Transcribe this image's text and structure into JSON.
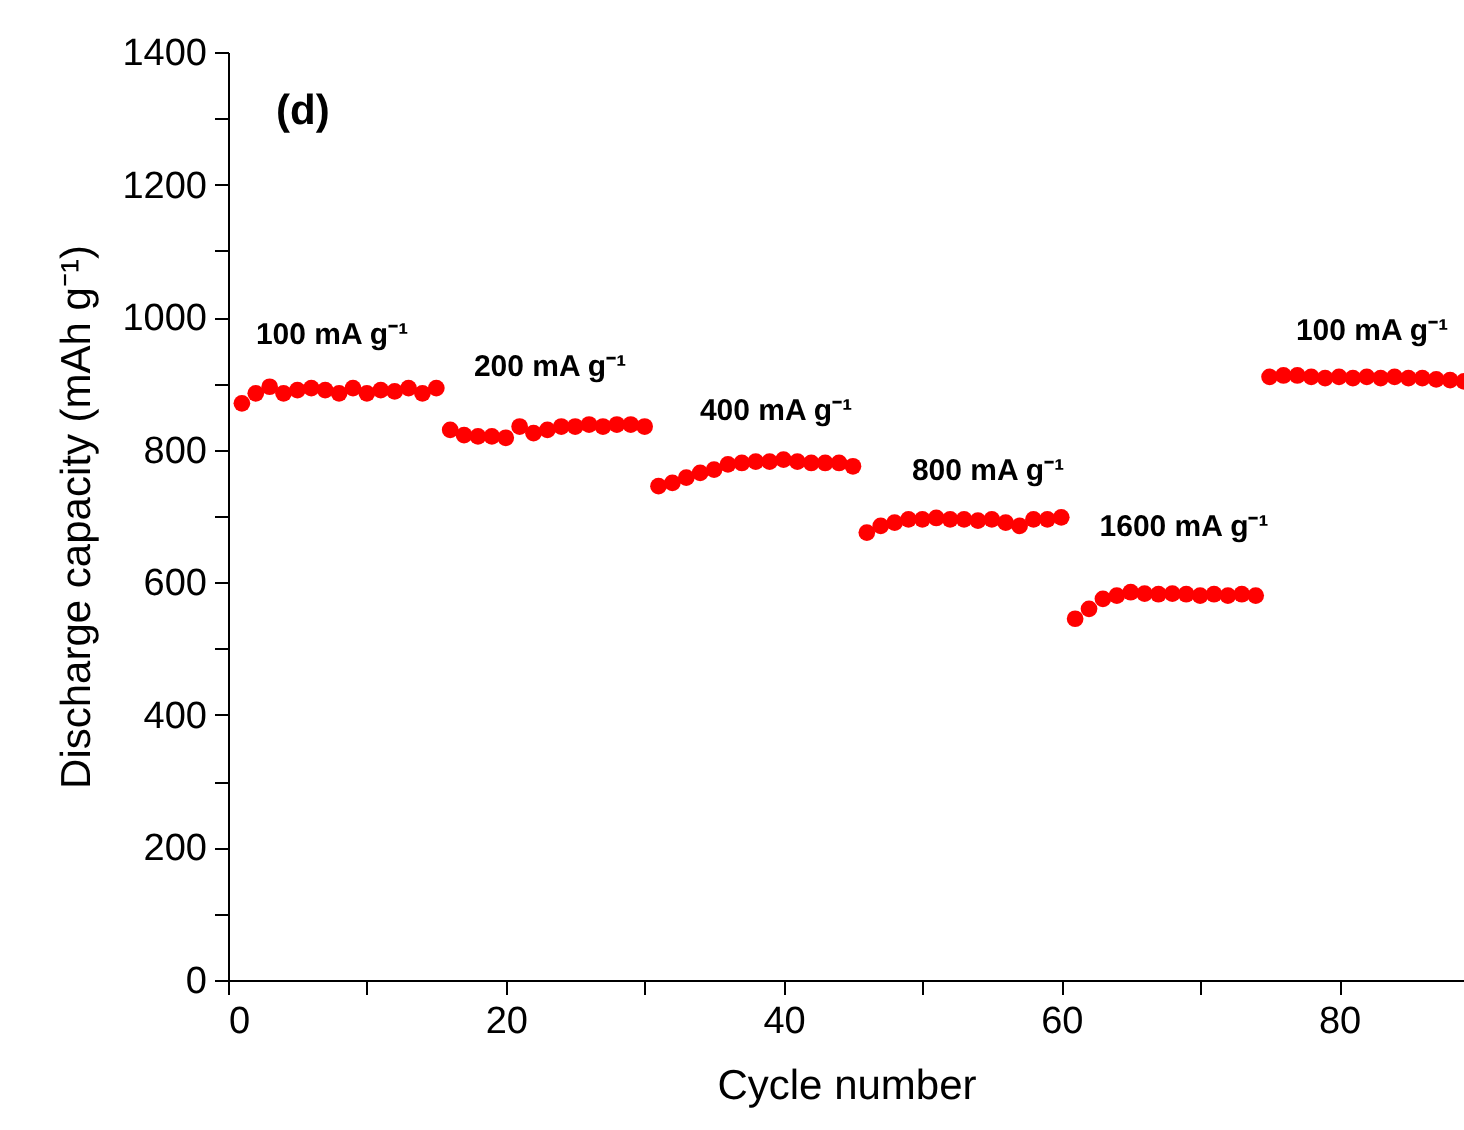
{
  "chart_data": {
    "type": "scatter",
    "xlabel": "Cycle number",
    "ylabel": "Discharge capacity (mAh g⁻¹)",
    "marker": "circle",
    "grid": false,
    "x": [
      1,
      2,
      3,
      4,
      5,
      6,
      7,
      8,
      9,
      10,
      11,
      12,
      13,
      14,
      15,
      16,
      17,
      18,
      19,
      20,
      21,
      22,
      23,
      24,
      25,
      26,
      27,
      28,
      29,
      30,
      31,
      32,
      33,
      34,
      35,
      36,
      37,
      38,
      39,
      40,
      41,
      42,
      43,
      44,
      45,
      46,
      47,
      48,
      49,
      50,
      51,
      52,
      53,
      54,
      55,
      56,
      57,
      58,
      59,
      60,
      61,
      62,
      63,
      64,
      65,
      66,
      67,
      68,
      69,
      70,
      71,
      72,
      73,
      74,
      75,
      76,
      77,
      78,
      79,
      80,
      81,
      82,
      83,
      84,
      85,
      86,
      87,
      88,
      89
    ],
    "series": [
      {
        "color": "#ff0000",
        "values": [
          870,
          885,
          895,
          885,
          890,
          893,
          890,
          885,
          893,
          885,
          890,
          888,
          893,
          885,
          893,
          830,
          822,
          820,
          820,
          818,
          835,
          825,
          830,
          835,
          835,
          838,
          835,
          838,
          838,
          835,
          745,
          750,
          758,
          765,
          770,
          778,
          780,
          782,
          782,
          785,
          782,
          780,
          780,
          780,
          775,
          675,
          685,
          690,
          695,
          695,
          697,
          695,
          695,
          693,
          695,
          690,
          685,
          695,
          695,
          698,
          545,
          560,
          575,
          580,
          585,
          583,
          582,
          583,
          582,
          580,
          582,
          580,
          582,
          580,
          910,
          912,
          912,
          910,
          908,
          910,
          908,
          910,
          908,
          910,
          908,
          908,
          906,
          905,
          903
        ]
      }
    ],
    "xlim": [
      0,
      89
    ],
    "ylim": [
      0,
      1400
    ],
    "xticks": [
      0,
      {
        "value": 10,
        "label": null
      },
      20,
      {
        "value": 30,
        "label": null
      },
      40,
      {
        "value": 50,
        "label": null
      },
      60,
      {
        "value": 70,
        "label": null
      },
      80
    ],
    "yticks": [
      0,
      {
        "value": 100,
        "label": null
      },
      200,
      {
        "value": 300,
        "label": null
      },
      400,
      {
        "value": 500,
        "label": null
      },
      600,
      {
        "value": 700,
        "label": null
      },
      800,
      {
        "value": 900,
        "label": null
      },
      1000,
      {
        "value": 1100,
        "label": null
      },
      1200,
      {
        "value": 1300,
        "label": null
      },
      1400
    ],
    "annotations": [
      "(d)",
      "100 mA g⁻¹",
      "200 mA g⁻¹",
      "400 mA g⁻¹",
      "800 mA g⁻¹",
      "1600 mA g⁻¹",
      "100 mA g⁻¹"
    ]
  }
}
